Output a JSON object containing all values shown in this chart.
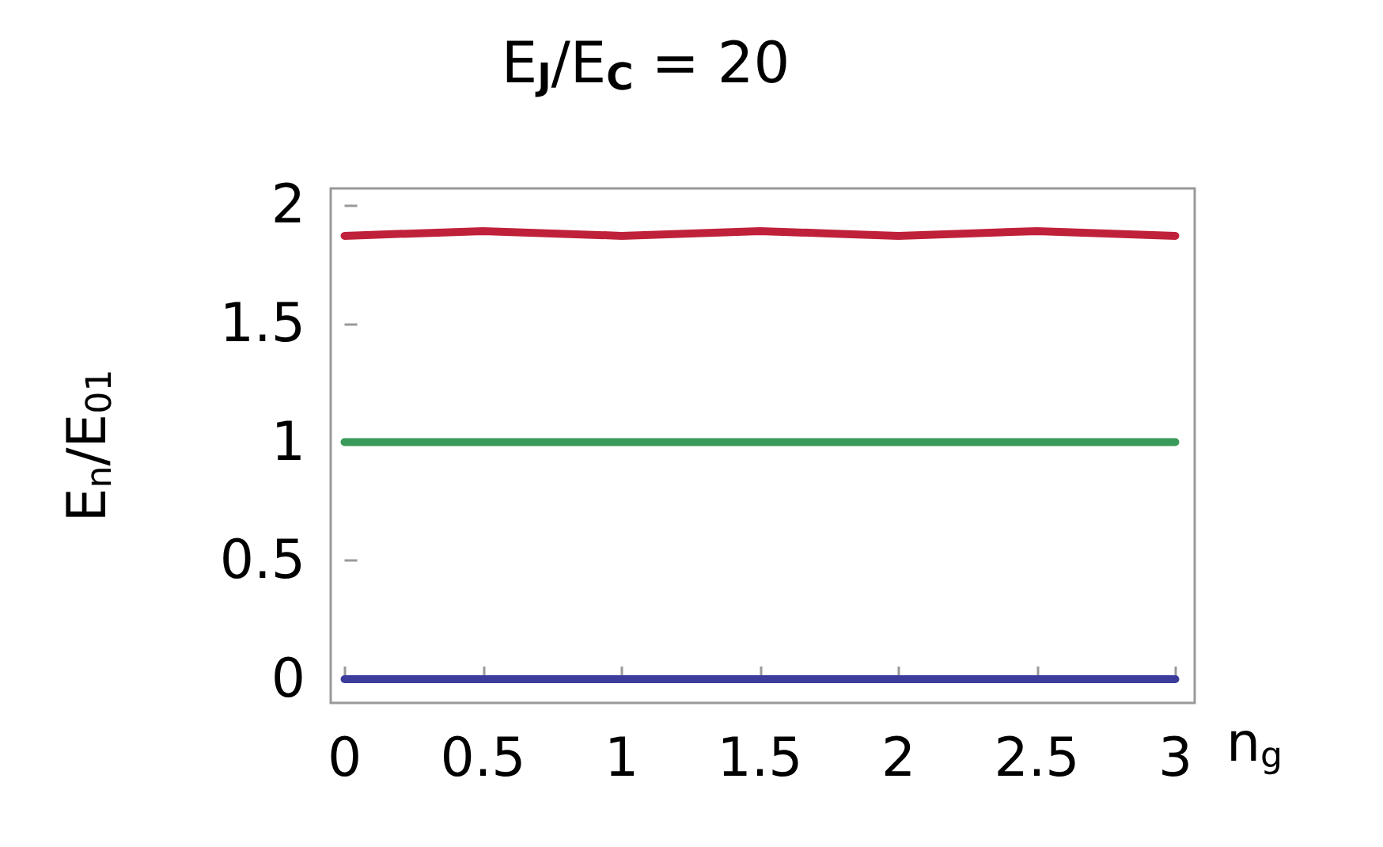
{
  "chart_data": {
    "type": "line",
    "title": "E$_{J}$/E$_{C}$ = 20",
    "xlabel": "n$_{g}$",
    "ylabel": "E$_{n}$/E$_{01}$",
    "x": [
      0,
      0.25,
      0.5,
      0.75,
      1,
      1.25,
      1.5,
      1.75,
      2,
      2.25,
      2.5,
      2.75,
      3
    ],
    "series": [
      {
        "color": "#3c3c9c",
        "values": [
          0,
          0,
          0,
          0,
          0,
          0,
          0,
          0,
          0,
          0,
          0,
          0,
          0
        ]
      },
      {
        "color": "#3a9a5a",
        "values": [
          1,
          1,
          1,
          1,
          1,
          1,
          1,
          1,
          1,
          1,
          1,
          1,
          1
        ]
      },
      {
        "color": "#c0213a",
        "values": [
          1.87,
          1.88,
          1.89,
          1.88,
          1.87,
          1.88,
          1.89,
          1.88,
          1.87,
          1.88,
          1.89,
          1.88,
          1.87
        ]
      }
    ],
    "xlim": [
      -0.05,
      3.07
    ],
    "xticks": [
      0,
      0.5,
      1,
      1.5,
      2,
      2.5,
      3
    ],
    "ylim": [
      -0.1,
      2.07
    ],
    "yticks": [
      0,
      0.5,
      1,
      1.5,
      2
    ],
    "grid": false,
    "marker": "none",
    "line_style": "solid"
  }
}
